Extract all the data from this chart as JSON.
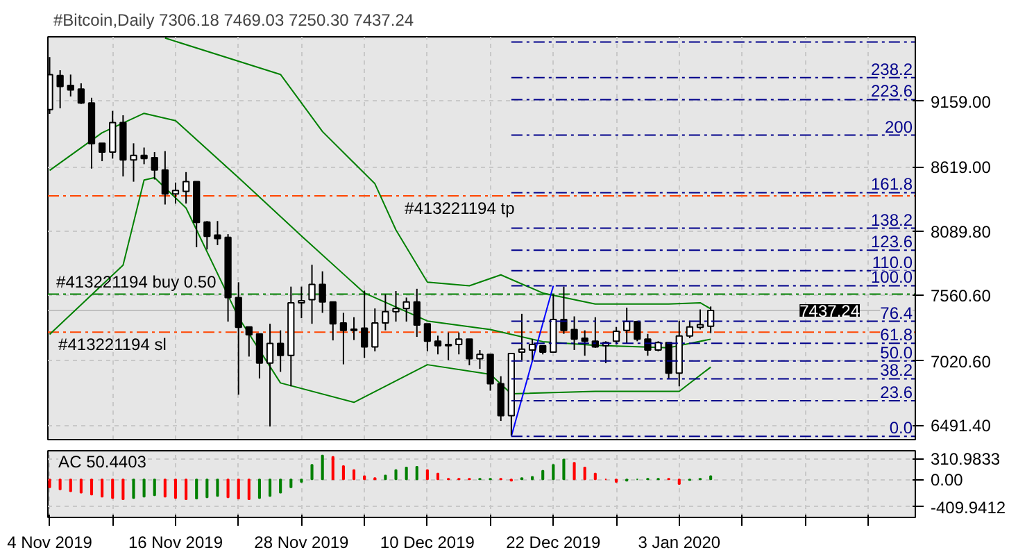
{
  "chart_data": [
    {
      "type": "candlestick",
      "title": "#Bitcoin,Daily  7306.18 7469.03 7250.30 7437.24",
      "x": [
        "2019-11-04",
        "2019-11-05",
        "2019-11-06",
        "2019-11-07",
        "2019-11-08",
        "2019-11-09",
        "2019-11-10",
        "2019-11-11",
        "2019-11-12",
        "2019-11-13",
        "2019-11-14",
        "2019-11-15",
        "2019-11-16",
        "2019-11-17",
        "2019-11-18",
        "2019-11-19",
        "2019-11-20",
        "2019-11-21",
        "2019-11-22",
        "2019-11-23",
        "2019-11-24",
        "2019-11-25",
        "2019-11-26",
        "2019-11-27",
        "2019-11-28",
        "2019-11-29",
        "2019-11-30",
        "2019-12-01",
        "2019-12-02",
        "2019-12-03",
        "2019-12-04",
        "2019-12-05",
        "2019-12-06",
        "2019-12-07",
        "2019-12-08",
        "2019-12-09",
        "2019-12-10",
        "2019-12-11",
        "2019-12-12",
        "2019-12-13",
        "2019-12-14",
        "2019-12-15",
        "2019-12-16",
        "2019-12-17",
        "2019-12-18",
        "2019-12-19",
        "2019-12-20",
        "2019-12-21",
        "2019-12-22",
        "2019-12-23",
        "2019-12-24",
        "2019-12-25",
        "2019-12-26",
        "2019-12-27",
        "2019-12-28",
        "2019-12-29",
        "2019-12-30",
        "2019-12-31",
        "2020-01-01",
        "2020-01-02",
        "2020-01-03",
        "2020-01-04",
        "2020-01-05",
        "2020-01-06"
      ],
      "ohlc": [
        [
          9091,
          9523,
          9055,
          9379
        ],
        [
          9371,
          9415,
          9101,
          9281
        ],
        [
          9289,
          9379,
          9199,
          9253
        ],
        [
          9260,
          9307,
          9137,
          9145
        ],
        [
          9145,
          9188,
          8605,
          8810
        ],
        [
          8813,
          8813,
          8666,
          8741
        ],
        [
          8741,
          9080,
          8687,
          8983
        ],
        [
          8983,
          9044,
          8540,
          8677
        ],
        [
          8677,
          8813,
          8497,
          8713
        ],
        [
          8713,
          8778,
          8641,
          8688
        ],
        [
          8695,
          8741,
          8515,
          8594
        ],
        [
          8594,
          8749,
          8309,
          8396
        ],
        [
          8396,
          8490,
          8317,
          8425
        ],
        [
          8418,
          8576,
          8317,
          8497
        ],
        [
          8497,
          8497,
          7957,
          8162
        ],
        [
          8165,
          8173,
          7939,
          8047
        ],
        [
          8057,
          8173,
          7975,
          8029
        ],
        [
          8039,
          8065,
          7345,
          7543
        ],
        [
          7543,
          7669,
          6743,
          7298
        ],
        [
          7301,
          7301,
          7057,
          7237
        ],
        [
          7244,
          7244,
          6877,
          7003
        ],
        [
          7003,
          7327,
          6481,
          7165
        ],
        [
          7165,
          7273,
          6931,
          7067
        ],
        [
          7067,
          7633,
          6812,
          7499
        ],
        [
          7499,
          7633,
          7373,
          7517
        ],
        [
          7525,
          7813,
          7327,
          7651
        ],
        [
          7651,
          7759,
          7417,
          7507
        ],
        [
          7507,
          7507,
          7190,
          7327
        ],
        [
          7334,
          7417,
          6993,
          7273
        ],
        [
          7283,
          7381,
          7193,
          7273
        ],
        [
          7291,
          7600,
          7046,
          7136
        ],
        [
          7136,
          7453,
          7100,
          7334
        ],
        [
          7334,
          7568,
          7273,
          7427
        ],
        [
          7427,
          7597,
          7345,
          7453
        ],
        [
          7453,
          7543,
          7345,
          7507
        ],
        [
          7507,
          7615,
          7219,
          7316
        ],
        [
          7327,
          7327,
          7100,
          7183
        ],
        [
          7183,
          7229,
          7075,
          7147
        ],
        [
          7157,
          7255,
          7028,
          7147
        ],
        [
          7157,
          7255,
          7075,
          7201
        ],
        [
          7201,
          7201,
          6985,
          7039
        ],
        [
          7039,
          7111,
          6956,
          7075
        ],
        [
          7075,
          7075,
          6776,
          6833
        ],
        [
          6833,
          6895,
          6527,
          6571
        ],
        [
          6571,
          7082,
          6409,
          7082
        ],
        [
          7093,
          7409,
          7028,
          7118
        ],
        [
          7111,
          7201,
          7028,
          7157
        ],
        [
          7147,
          7147,
          7075,
          7093
        ],
        [
          7093,
          7568,
          7093,
          7363
        ],
        [
          7363,
          7633,
          7244,
          7273
        ],
        [
          7280,
          7388,
          7111,
          7201
        ],
        [
          7208,
          7273,
          7064,
          7183
        ],
        [
          7183,
          7381,
          7129,
          7136
        ],
        [
          7147,
          7183,
          7003,
          7172
        ],
        [
          7183,
          7301,
          7157,
          7265
        ],
        [
          7273,
          7460,
          7165,
          7345
        ],
        [
          7345,
          7352,
          7183,
          7201
        ],
        [
          7201,
          7244,
          7064,
          7111
        ],
        [
          7111,
          7183,
          7100,
          7172
        ],
        [
          7172,
          7172,
          6877,
          6920
        ],
        [
          6920,
          7352,
          6812,
          7226
        ],
        [
          7226,
          7352,
          7208,
          7301
        ],
        [
          7298,
          7445,
          7280,
          7320
        ],
        [
          7306.18,
          7469.03,
          7250.3,
          7437.24
        ]
      ],
      "colors": [
        "#ffffff",
        "#000000",
        "#000000",
        "#000000",
        "#000000",
        "#000000",
        "#ffffff",
        "#000000",
        "#ffffff",
        "#000000",
        "#000000",
        "#000000",
        "#ffffff",
        "#ffffff",
        "#000000",
        "#000000",
        "#000000",
        "#000000",
        "#000000",
        "#000000",
        "#000000",
        "#ffffff",
        "#000000",
        "#ffffff",
        "#ffffff",
        "#ffffff",
        "#000000",
        "#000000",
        "#000000",
        "#000000",
        "#000000",
        "#ffffff",
        "#ffffff",
        "#ffffff",
        "#ffffff",
        "#000000",
        "#000000",
        "#000000",
        "#000000",
        "#ffffff",
        "#000000",
        "#ffffff",
        "#000000",
        "#000000",
        "#ffffff",
        "#ffffff",
        "#ffffff",
        "#000000",
        "#ffffff",
        "#000000",
        "#000000",
        "#000000",
        "#000000",
        "#ffffff",
        "#ffffff",
        "#ffffff",
        "#000000",
        "#000000",
        "#ffffff",
        "#000000",
        "#ffffff",
        "#ffffff",
        "#ffffff",
        "#ffffff"
      ],
      "series": [
        {
          "type": "line",
          "color": "#008000",
          "x": [
            "2019-11-15",
            "2019-11-26",
            "2019-11-30",
            "2019-12-05",
            "2019-12-07",
            "2019-12-10",
            "2019-12-14",
            "2019-12-17",
            "2019-12-21",
            "2019-12-26",
            "2020-01-02",
            "2020-01-05",
            "2020-01-06"
          ],
          "values": [
            9680,
            9380,
            8910,
            8480,
            8100,
            7670,
            7640,
            7730,
            7580,
            7490,
            7490,
            7500,
            7450
          ]
        },
        {
          "type": "line",
          "color": "#008000",
          "x": [
            "2019-11-04",
            "2019-11-09",
            "2019-11-13",
            "2019-11-16",
            "2019-11-22",
            "2019-11-28",
            "2019-12-04",
            "2019-12-10",
            "2019-12-16",
            "2019-12-21",
            "2019-12-26",
            "2020-01-02",
            "2020-01-06"
          ],
          "values": [
            8590,
            8900,
            9060,
            9000,
            8530,
            8050,
            7580,
            7350,
            7280,
            7180,
            7150,
            7130,
            7200
          ]
        },
        {
          "type": "line",
          "color": "#008000",
          "x": [
            "2019-11-04",
            "2019-11-11",
            "2019-11-13",
            "2019-11-14",
            "2019-11-17",
            "2019-11-22",
            "2019-11-26",
            "2019-12-03",
            "2019-12-10",
            "2019-12-16",
            "2019-12-18",
            "2019-12-26",
            "2020-01-03",
            "2020-01-06"
          ],
          "values": [
            7240,
            7810,
            8510,
            8530,
            8280,
            7380,
            6840,
            6680,
            6990,
            6910,
            6750,
            6770,
            6770,
            6970
          ]
        },
        {
          "type": "line",
          "color": "#0000ff",
          "x": [
            "2019-12-18",
            "2019-12-22"
          ],
          "values": [
            6400,
            7640
          ]
        }
      ],
      "ref_lines": [
        {
          "axis": "y",
          "value": 8381,
          "label": "#413221194 tp",
          "color": "#ff4500",
          "line_style": "dashdot"
        },
        {
          "axis": "y",
          "value": 7571,
          "label": "#413221194 buy 0.50",
          "color": "#008000",
          "line_style": "dashdot"
        },
        {
          "axis": "y",
          "value": 7258,
          "label": "#413221194 sl",
          "color": "#ff4500",
          "line_style": "dashdot"
        },
        {
          "axis": "y",
          "value": 7437.24,
          "label": "7437.24",
          "color": "#c0c0c0",
          "line_style": "solid"
        },
        {
          "axis": "y2",
          "value": 0,
          "label": "0.0",
          "color": "#00008b",
          "line_style": "dashdot"
        },
        {
          "axis": "y2",
          "value": 23.6,
          "label": "23.6",
          "color": "#00008b",
          "line_style": "dashdot"
        },
        {
          "axis": "y2",
          "value": 38.2,
          "label": "38.2",
          "color": "#00008b",
          "line_style": "dashdot"
        },
        {
          "axis": "y2",
          "value": 50,
          "label": "50.0",
          "color": "#00008b",
          "line_style": "dashdot"
        },
        {
          "axis": "y2",
          "value": 61.8,
          "label": "61.8",
          "color": "#00008b",
          "line_style": "dashdot"
        },
        {
          "axis": "y2",
          "value": 76.4,
          "label": "76.4",
          "color": "#00008b",
          "line_style": "dashdot"
        },
        {
          "axis": "y2",
          "value": 100,
          "label": "100.0",
          "color": "#00008b",
          "line_style": "dashdot"
        },
        {
          "axis": "y2",
          "value": 110,
          "label": "110.0",
          "color": "#00008b",
          "line_style": "dashdot"
        },
        {
          "axis": "y2",
          "value": 123.6,
          "label": "123.6",
          "color": "#00008b",
          "line_style": "dashdot"
        },
        {
          "axis": "y2",
          "value": 138.2,
          "label": "138.2",
          "color": "#00008b",
          "line_style": "dashdot"
        },
        {
          "axis": "y2",
          "value": 161.8,
          "label": "161.8",
          "color": "#00008b",
          "line_style": "dashdot"
        },
        {
          "axis": "y2",
          "value": 200,
          "label": "200",
          "color": "#00008b",
          "line_style": "dashdot"
        },
        {
          "axis": "y2",
          "value": 223.6,
          "label": "223.6",
          "color": "#00008b",
          "line_style": "dashdot"
        },
        {
          "axis": "y2",
          "value": 238.2,
          "label": "238.2",
          "color": "#00008b",
          "line_style": "dashdot"
        },
        {
          "axis": "y2",
          "value": 261.8,
          "label": null,
          "color": "#00008b",
          "line_style": "dashdot"
        }
      ],
      "y2lim": [
        -2.18,
        265.3
      ],
      "xlim": [
        "2019-11-03T20:00",
        "2020-01-25T12:00"
      ],
      "xticks": [
        {
          "value": "2019-11-10",
          "label": null
        },
        {
          "value": "2019-11-16",
          "label": null
        },
        {
          "value": "2019-11-22",
          "label": null
        },
        {
          "value": "2019-11-28",
          "label": null
        },
        {
          "value": "2019-12-04",
          "label": null
        },
        {
          "value": "2019-12-10",
          "label": null
        },
        {
          "value": "2019-12-16",
          "label": null
        },
        {
          "value": "2019-12-22",
          "label": null
        },
        {
          "value": "2019-12-28",
          "label": null
        },
        {
          "value": "2020-01-03",
          "label": null
        },
        {
          "value": "2020-01-09",
          "label": null
        },
        {
          "value": "2020-01-15",
          "label": null
        },
        {
          "value": "2020-01-21",
          "label": null
        }
      ],
      "ylim": [
        6373,
        9690
      ],
      "yticks": [
        {
          "value": 6491.4,
          "label": "6491.40"
        },
        {
          "value": 7020.6,
          "label": "7020.60"
        },
        {
          "value": 7560.6,
          "label": "7560.60"
        },
        {
          "value": 8089.8,
          "label": "8089.80"
        },
        {
          "value": 8619,
          "label": "8619.00"
        },
        {
          "value": 9159,
          "label": "9159.00"
        }
      ],
      "tick_labels": "y",
      "grid": true
    },
    {
      "type": "bar",
      "title": "AC 50.4403",
      "x": [
        "2019-11-04",
        "2019-11-05",
        "2019-11-06",
        "2019-11-07",
        "2019-11-08",
        "2019-11-09",
        "2019-11-10",
        "2019-11-11",
        "2019-11-12",
        "2019-11-13",
        "2019-11-14",
        "2019-11-15",
        "2019-11-16",
        "2019-11-17",
        "2019-11-18",
        "2019-11-19",
        "2019-11-20",
        "2019-11-21",
        "2019-11-22",
        "2019-11-23",
        "2019-11-24",
        "2019-11-25",
        "2019-11-26",
        "2019-11-27",
        "2019-11-28",
        "2019-11-29",
        "2019-11-30",
        "2019-12-01",
        "2019-12-02",
        "2019-12-03",
        "2019-12-04",
        "2019-12-05",
        "2019-12-06",
        "2019-12-07",
        "2019-12-08",
        "2019-12-09",
        "2019-12-10",
        "2019-12-11",
        "2019-12-12",
        "2019-12-13",
        "2019-12-14",
        "2019-12-15",
        "2019-12-16",
        "2019-12-17",
        "2019-12-18",
        "2019-12-19",
        "2019-12-20",
        "2019-12-21",
        "2019-12-22",
        "2019-12-23",
        "2019-12-24",
        "2019-12-25",
        "2019-12-26",
        "2019-12-27",
        "2019-12-28",
        "2019-12-29",
        "2019-12-30",
        "2019-12-31",
        "2020-01-01",
        "2020-01-02",
        "2020-01-03",
        "2020-01-04",
        "2020-01-05",
        "2020-01-06"
      ],
      "values": [
        -120,
        -150,
        -180,
        -200,
        -230,
        -260,
        -280,
        -300,
        -280,
        -260,
        -240,
        -260,
        -280,
        -300,
        -290,
        -270,
        -250,
        -270,
        -290,
        -300,
        -280,
        -250,
        -200,
        -120,
        -40,
        220,
        360,
        340,
        200,
        140,
        50,
        20,
        60,
        140,
        180,
        190,
        140,
        90,
        10,
        10,
        10,
        10,
        10,
        10,
        -20,
        20,
        40,
        130,
        220,
        300,
        250,
        180,
        90,
        0,
        -40,
        -20,
        0,
        10,
        10,
        10,
        -70,
        -10,
        10,
        50.4403
      ],
      "colors": [
        "#ff0000",
        "#ff0000",
        "#ff0000",
        "#ff0000",
        "#ff0000",
        "#ff0000",
        "#ff0000",
        "#ff0000",
        "#008000",
        "#008000",
        "#008000",
        "#ff0000",
        "#ff0000",
        "#ff0000",
        "#008000",
        "#008000",
        "#008000",
        "#ff0000",
        "#ff0000",
        "#ff0000",
        "#008000",
        "#008000",
        "#008000",
        "#008000",
        "#008000",
        "#008000",
        "#008000",
        "#ff0000",
        "#ff0000",
        "#ff0000",
        "#ff0000",
        "#ff0000",
        "#008000",
        "#008000",
        "#008000",
        "#008000",
        "#ff0000",
        "#ff0000",
        "#ff0000",
        "#ff0000",
        "#ff0000",
        "#008000",
        "#008000",
        "#ff0000",
        "#ff0000",
        "#008000",
        "#008000",
        "#008000",
        "#008000",
        "#008000",
        "#ff0000",
        "#ff0000",
        "#ff0000",
        "#ff0000",
        "#ff0000",
        "#008000",
        "#008000",
        "#008000",
        "#008000",
        "#ff0000",
        "#ff0000",
        "#008000",
        "#008000",
        "#008000"
      ],
      "xlim": [
        "2019-11-03T20:00",
        "2020-01-25T12:00"
      ],
      "xticks": [
        {
          "value": "2019-11-04",
          "label": "4 Nov 2019"
        },
        {
          "value": "2019-11-10",
          "label": null
        },
        {
          "value": "2019-11-16",
          "label": "16 Nov 2019"
        },
        {
          "value": "2019-11-22",
          "label": null
        },
        {
          "value": "2019-11-28",
          "label": "28 Nov 2019"
        },
        {
          "value": "2019-12-04",
          "label": null
        },
        {
          "value": "2019-12-10",
          "label": "10 Dec 2019"
        },
        {
          "value": "2019-12-16",
          "label": null
        },
        {
          "value": "2019-12-22",
          "label": "22 Dec 2019"
        },
        {
          "value": "2019-12-28",
          "label": null
        },
        {
          "value": "2020-01-03",
          "label": "3 Jan 2020"
        },
        {
          "value": "2020-01-09",
          "label": null
        },
        {
          "value": "2020-01-15",
          "label": null
        },
        {
          "value": "2020-01-21",
          "label": null
        }
      ],
      "ylim": [
        -570,
        430
      ],
      "yticks": [
        {
          "value": -409.9412,
          "label": "-409.9412"
        },
        {
          "value": 0,
          "label": "0.00"
        },
        {
          "value": 310.9833,
          "label": "310.9833"
        }
      ],
      "grid": true
    }
  ]
}
